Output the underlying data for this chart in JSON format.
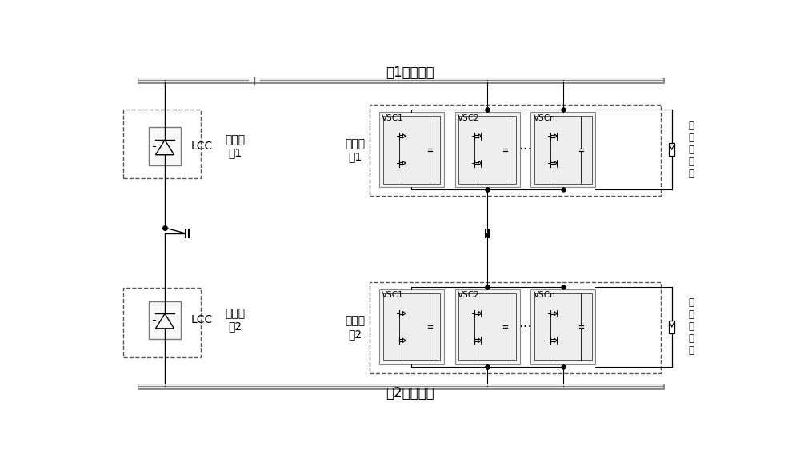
{
  "bg_color": "#ffffff",
  "line_color": "#000000",
  "dashed_color": "#555555",
  "title_top": "极1直流线路",
  "title_bottom": "极2直流线路",
  "label_rect1": "整流站\n极1",
  "label_rect2": "整流站\n极2",
  "label_inv1": "逆变站\n极1",
  "label_inv2": "逆变站\n极2",
  "label_lcc": "LCC",
  "label_arrester1": "并\n联\n避\n雷\n器",
  "label_arrester2": "并\n联\n避\n雷\n器",
  "vsc_labels": [
    "VSC1",
    "VSC2",
    "VSCn"
  ],
  "font_size_title": 12,
  "font_size_label": 10,
  "font_size_vsc": 8
}
